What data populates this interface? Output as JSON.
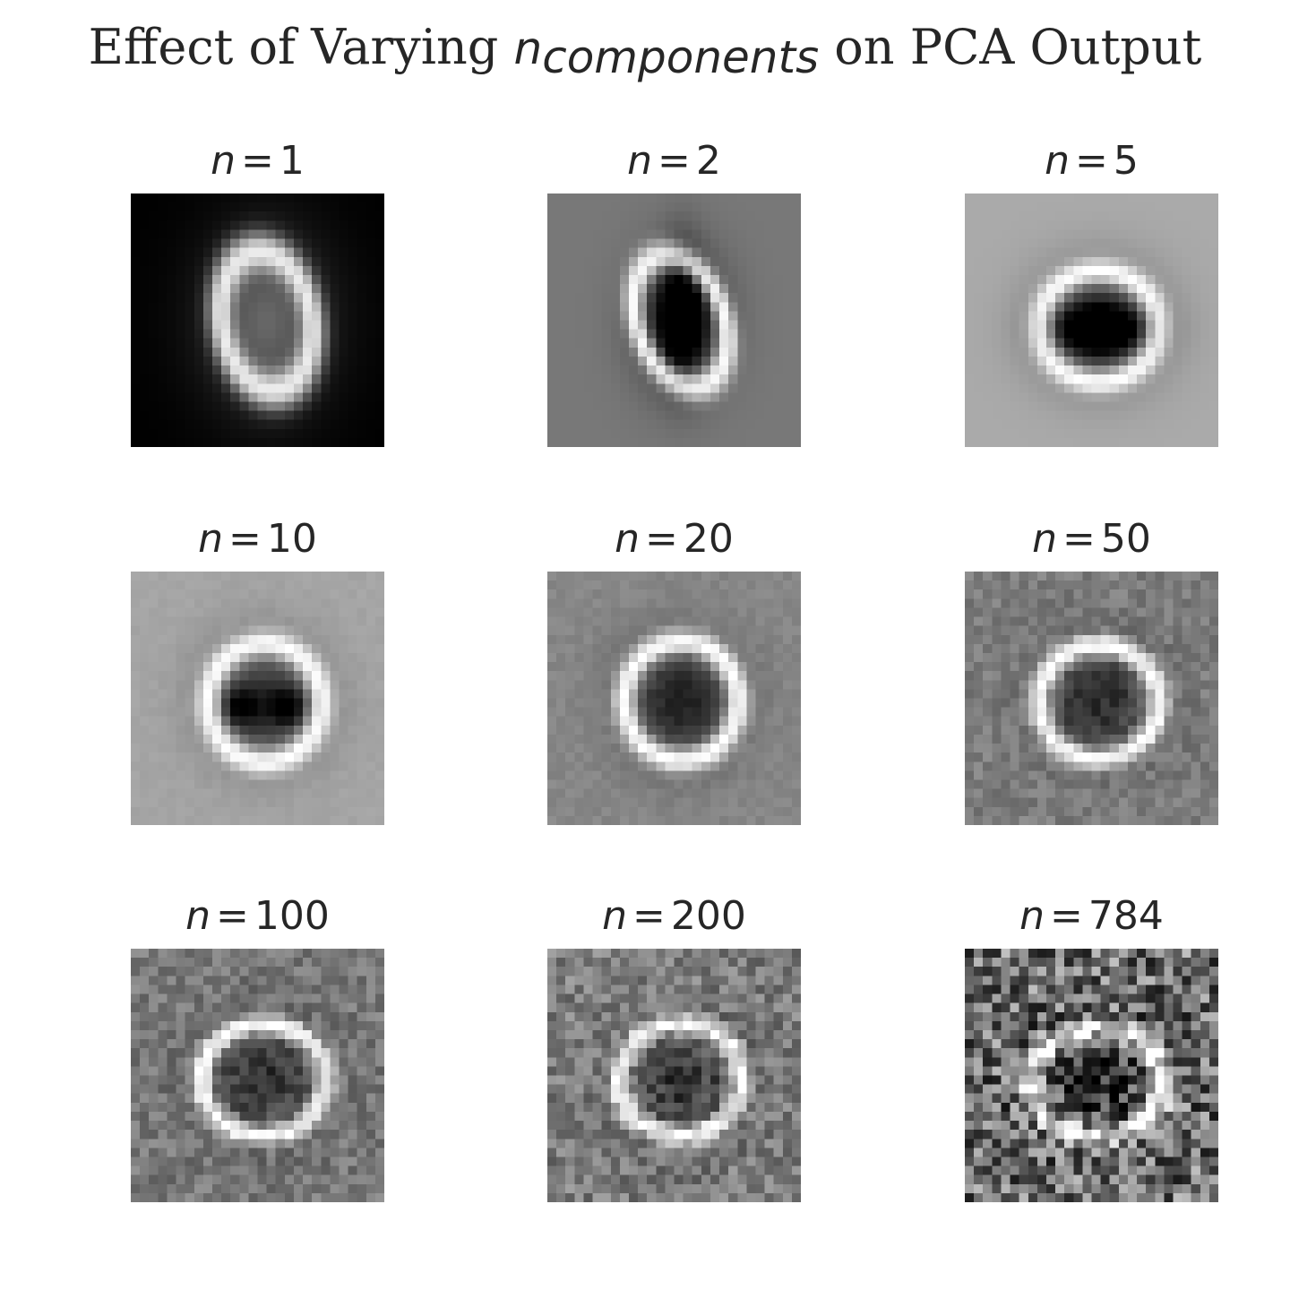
{
  "figure": {
    "title_prefix": "Effect of Varying ",
    "title_var": "n",
    "title_sub": "components",
    "title_suffix": " on PCA Output"
  },
  "panels": [
    {
      "var": "n",
      "eq": "=",
      "value": "1",
      "style": "n1"
    },
    {
      "var": "n",
      "eq": "=",
      "value": "2",
      "style": "n2"
    },
    {
      "var": "n",
      "eq": "=",
      "value": "5",
      "style": "n5"
    },
    {
      "var": "n",
      "eq": "=",
      "value": "10",
      "style": "n10"
    },
    {
      "var": "n",
      "eq": "=",
      "value": "20",
      "style": "n20"
    },
    {
      "var": "n",
      "eq": "=",
      "value": "50",
      "style": "n50"
    },
    {
      "var": "n",
      "eq": "=",
      "value": "100",
      "style": "n100"
    },
    {
      "var": "n",
      "eq": "=",
      "value": "200",
      "style": "n200"
    },
    {
      "var": "n",
      "eq": "=",
      "value": "784",
      "style": "n784"
    }
  ],
  "colormap": "gray"
}
